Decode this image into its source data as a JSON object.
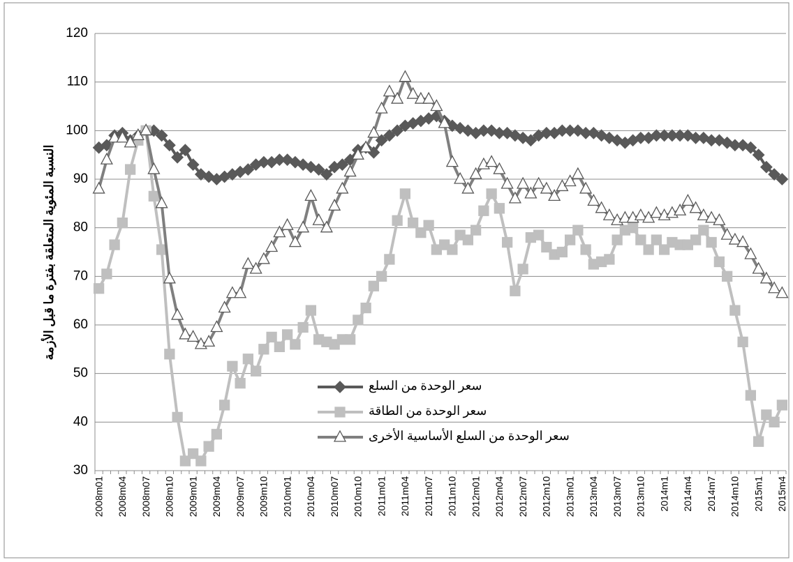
{
  "chart_data": {
    "type": "line",
    "ylabel": "النسبة المئوية المتعلقة بفترة ما قبل الأزمة",
    "categories": [
      "2008m01",
      null,
      null,
      "2008m04",
      null,
      null,
      "2008m07",
      null,
      null,
      "2008m10",
      null,
      null,
      "2009m01",
      null,
      null,
      "2009m04",
      null,
      null,
      "2009m07",
      null,
      null,
      "2009m10",
      null,
      null,
      "2010m01",
      null,
      null,
      "2010m04",
      null,
      null,
      "2010m07",
      null,
      null,
      "2010m10",
      null,
      null,
      "2011m01",
      null,
      null,
      "2011m04",
      null,
      null,
      "2011m07",
      null,
      null,
      "2011m10",
      null,
      null,
      "2012m01",
      null,
      null,
      "2012m04",
      null,
      null,
      "2012m07",
      null,
      null,
      "2012m10",
      null,
      null,
      "2013m01",
      null,
      null,
      "2013m04",
      null,
      null,
      "2013m07",
      null,
      null,
      "2013m10",
      null,
      null,
      "2014m1",
      null,
      null,
      "2014m4",
      null,
      null,
      "2014m7",
      null,
      null,
      "2014m10",
      null,
      null,
      "2015m1",
      null,
      null,
      "2015m4"
    ],
    "series": [
      {
        "name": "سعر الوحدة من السلع",
        "color": "#595959",
        "marker": "diamond",
        "marker_fill": "#595959",
        "values": [
          96.5,
          97,
          99,
          99.5,
          98,
          99,
          100,
          100,
          99,
          97,
          94.5,
          96,
          93,
          91,
          90.5,
          90,
          90.5,
          91,
          91.5,
          92,
          93,
          93.5,
          93.5,
          94,
          94,
          93.5,
          93,
          92.5,
          92,
          91,
          92.5,
          93,
          94,
          96,
          96.5,
          95.5,
          98,
          99,
          100,
          101,
          101.5,
          102,
          102.5,
          103,
          102,
          101,
          100.5,
          100,
          99.5,
          100,
          100,
          99.5,
          99.5,
          99,
          98.5,
          98,
          99,
          99.5,
          99.5,
          100,
          100,
          100,
          99.5,
          99.5,
          99,
          98.5,
          98,
          97.5,
          98,
          98.5,
          98.5,
          99,
          99,
          99,
          99,
          99,
          98.5,
          98.5,
          98,
          98,
          97.5,
          97,
          97,
          96.5,
          95,
          92.5,
          91,
          90
        ]
      },
      {
        "name": "سعر الوحدة من الطاقة",
        "color": "#bfbfbf",
        "marker": "square",
        "marker_fill": "#bfbfbf",
        "values": [
          67.5,
          70.5,
          76.5,
          81,
          92,
          98,
          100,
          86.5,
          75.5,
          54,
          41,
          32,
          33.5,
          32,
          35,
          37.5,
          43.5,
          51.5,
          48,
          53,
          50.5,
          55,
          57.5,
          55.5,
          58,
          56,
          59.5,
          63,
          57,
          56.5,
          56,
          57,
          57,
          61,
          63.5,
          68,
          70,
          73.5,
          81.5,
          87,
          81,
          79,
          80.5,
          75.5,
          76.5,
          75.5,
          78.5,
          77.5,
          79.5,
          83.5,
          87,
          84,
          77,
          67,
          71.5,
          78,
          78.5,
          76,
          74.5,
          75,
          77.5,
          79.5,
          75.5,
          72.5,
          73,
          73.5,
          77.5,
          79.5,
          80,
          77.5,
          75.5,
          77.5,
          75.5,
          77,
          76.5,
          76.5,
          77.5,
          79.5,
          77,
          73,
          70,
          63,
          56.5,
          45.5,
          36,
          41.5,
          40,
          43.5
        ]
      },
      {
        "name": "سعر الوحدة من السلع الأساسية الأخرى",
        "color": "#7f7f7f",
        "marker": "triangle",
        "marker_fill": "#ffffff",
        "values": [
          88,
          94,
          98.5,
          98.5,
          97.5,
          99,
          100,
          92,
          85,
          69.5,
          62,
          58,
          57.5,
          56,
          56.5,
          59.5,
          63.5,
          66.5,
          66.5,
          72.5,
          71.5,
          73.5,
          76,
          79,
          80.5,
          77,
          80,
          86.5,
          81.5,
          80,
          84.5,
          88,
          91.5,
          95,
          96.5,
          99.5,
          104.5,
          108,
          106.5,
          111,
          107.5,
          106.5,
          106.5,
          105,
          101.5,
          93.5,
          90,
          88,
          91,
          93,
          93.5,
          92,
          89,
          86,
          89,
          87,
          89,
          88,
          86.5,
          88.5,
          89.5,
          91,
          88,
          85.5,
          84,
          82.5,
          81.5,
          82,
          82,
          82.5,
          82,
          83,
          82.5,
          83,
          83.5,
          85.5,
          84,
          82.5,
          82,
          81.5,
          78.5,
          77.5,
          77,
          74.5,
          71.5,
          69.5,
          67.5,
          66.5
        ]
      }
    ],
    "ylim": [
      30,
      120
    ],
    "yticks": [
      30,
      40,
      50,
      60,
      70,
      80,
      90,
      100,
      110,
      120
    ],
    "grid": true
  }
}
